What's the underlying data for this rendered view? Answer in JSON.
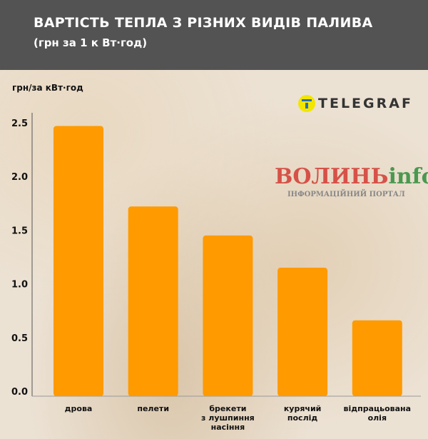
{
  "chart_data": {
    "type": "bar",
    "title": "ВАРТІСТЬ ТЕПЛА З РІЗНИХ ВИДІВ ПАЛИВА",
    "subtitle": "(грн за 1 к Вт·год)",
    "ylabel": "грн/за кВт·год",
    "xlabel": "",
    "categories": [
      [
        "дрова"
      ],
      [
        "пелети"
      ],
      [
        "брекети",
        "з лушпиння",
        "насіння"
      ],
      [
        "курячий",
        "послід"
      ],
      [
        "відпрацьована",
        "олія"
      ]
    ],
    "values": [
      2.47,
      1.72,
      1.45,
      1.15,
      0.66
    ],
    "yticks": [
      "0.0",
      "0.5",
      "1.0",
      "1.5",
      "2.0",
      "2.5"
    ],
    "ylim": [
      0,
      2.7
    ],
    "grid": false,
    "bar_color": "#ff9a00"
  },
  "logo": "TELEGRAF",
  "watermark": {
    "name_red": "ВОЛИНЬ",
    "name_green": "info",
    "tagline": "ІНФОРМАЦІЙНИЙ ПОРТАЛ"
  }
}
